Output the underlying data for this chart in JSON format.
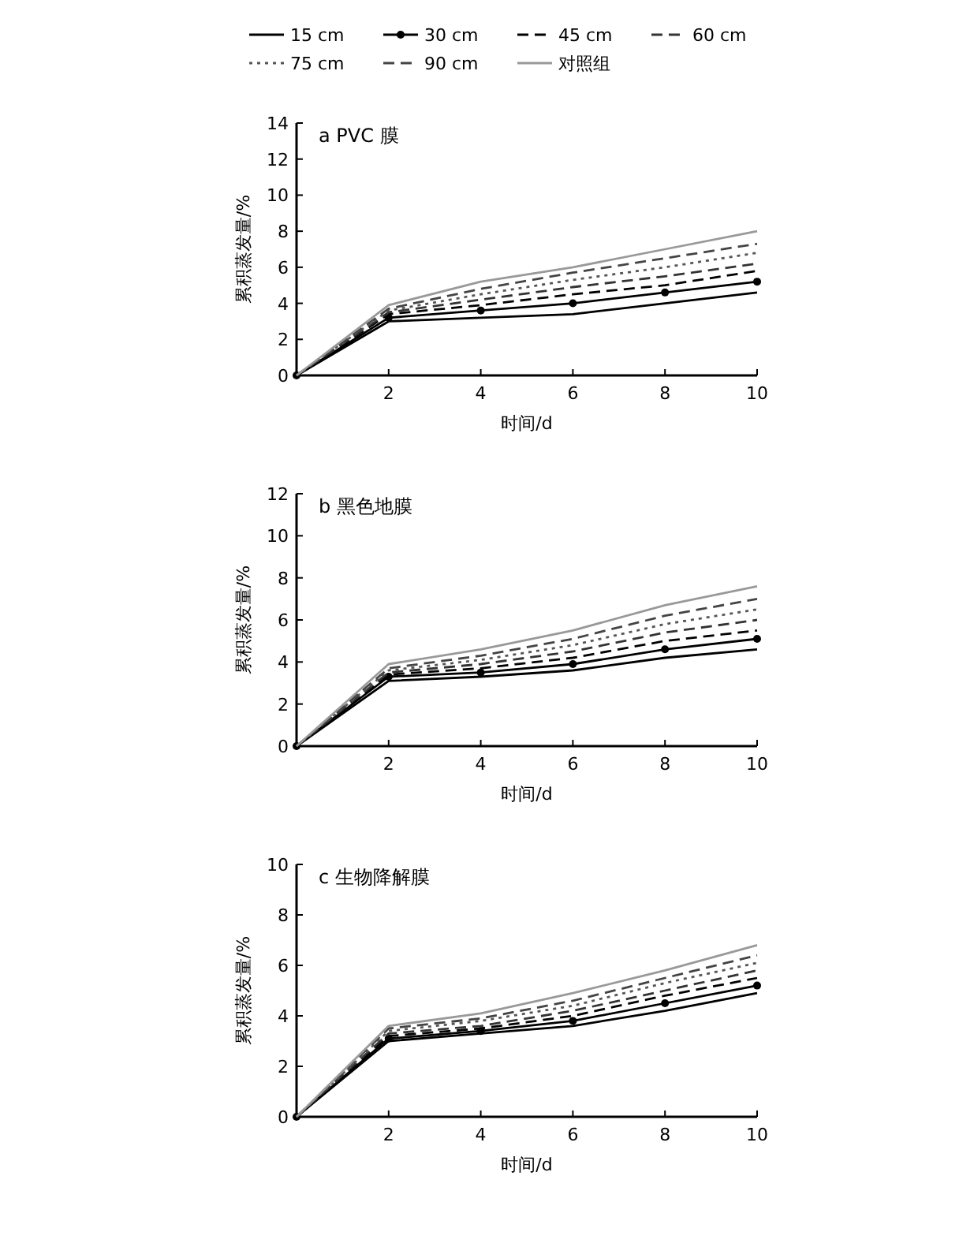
{
  "chart_data": [
    {
      "type": "line",
      "title": "a PVC 膜",
      "xlabel": "时间/d",
      "ylabel": "累积蒸发量/%",
      "x": [
        0,
        2,
        4,
        6,
        8,
        10
      ],
      "xlim": [
        0,
        10
      ],
      "xticks": [
        2,
        4,
        6,
        8,
        10
      ],
      "ylim": [
        0,
        14
      ],
      "yticks": [
        0,
        2,
        4,
        6,
        8,
        10,
        12,
        14
      ],
      "legend": "top",
      "grid": false,
      "series": [
        {
          "name": "15 cm",
          "color": "#000000",
          "line_style": "solid",
          "marker": "none",
          "values": [
            0,
            3.0,
            3.2,
            3.4,
            4.0,
            4.6
          ]
        },
        {
          "name": "30 cm",
          "color": "#000000",
          "line_style": "solid",
          "marker": "circle",
          "values": [
            0,
            3.2,
            3.6,
            4.0,
            4.6,
            5.2
          ]
        },
        {
          "name": "45 cm",
          "color": "#000000",
          "line_style": "dashed",
          "marker": "none",
          "values": [
            0,
            3.4,
            3.9,
            4.5,
            5.0,
            5.8
          ]
        },
        {
          "name": "60 cm",
          "color": "#333333",
          "line_style": "dashed",
          "marker": "none",
          "values": [
            0,
            3.5,
            4.2,
            4.9,
            5.5,
            6.2
          ]
        },
        {
          "name": "75 cm",
          "color": "#555555",
          "line_style": "dotted",
          "marker": "none",
          "values": [
            0,
            3.6,
            4.5,
            5.3,
            6.0,
            6.8
          ]
        },
        {
          "name": "90 cm",
          "color": "#444444",
          "line_style": "dashed",
          "marker": "none",
          "values": [
            0,
            3.7,
            4.8,
            5.7,
            6.5,
            7.3
          ]
        },
        {
          "name": "对照组",
          "color": "#999999",
          "line_style": "solid",
          "marker": "none",
          "values": [
            0,
            3.9,
            5.2,
            6.0,
            7.0,
            8.0
          ]
        }
      ]
    },
    {
      "type": "line",
      "title": "b 黑色地膜",
      "xlabel": "时间/d",
      "ylabel": "累积蒸发量/%",
      "x": [
        0,
        2,
        4,
        6,
        8,
        10
      ],
      "xlim": [
        0,
        10
      ],
      "xticks": [
        2,
        4,
        6,
        8,
        10
      ],
      "ylim": [
        0,
        12
      ],
      "yticks": [
        0,
        2,
        4,
        6,
        8,
        10,
        12
      ],
      "grid": false,
      "series": [
        {
          "color": "#000000",
          "line_style": "solid",
          "marker": "none",
          "values": [
            0,
            3.1,
            3.3,
            3.6,
            4.2,
            4.6
          ]
        },
        {
          "color": "#000000",
          "line_style": "solid",
          "marker": "circle",
          "values": [
            0,
            3.3,
            3.5,
            3.9,
            4.6,
            5.1
          ]
        },
        {
          "color": "#000000",
          "line_style": "dashed",
          "marker": "none",
          "values": [
            0,
            3.4,
            3.7,
            4.2,
            5.0,
            5.5
          ]
        },
        {
          "color": "#333333",
          "line_style": "dashed",
          "marker": "none",
          "values": [
            0,
            3.5,
            3.9,
            4.5,
            5.4,
            6.0
          ]
        },
        {
          "color": "#555555",
          "line_style": "dotted",
          "marker": "none",
          "values": [
            0,
            3.6,
            4.1,
            4.8,
            5.8,
            6.5
          ]
        },
        {
          "color": "#444444",
          "line_style": "dashed",
          "marker": "none",
          "values": [
            0,
            3.7,
            4.3,
            5.1,
            6.2,
            7.0
          ]
        },
        {
          "color": "#999999",
          "line_style": "solid",
          "marker": "none",
          "values": [
            0,
            3.9,
            4.6,
            5.5,
            6.7,
            7.6
          ]
        }
      ]
    },
    {
      "type": "line",
      "title": "c 生物降解膜",
      "xlabel": "时间/d",
      "ylabel": "累积蒸发量/%",
      "x": [
        0,
        2,
        4,
        6,
        8,
        10
      ],
      "xlim": [
        0,
        10
      ],
      "xticks": [
        2,
        4,
        6,
        8,
        10
      ],
      "ylim": [
        0,
        10
      ],
      "yticks": [
        0,
        2,
        4,
        6,
        8,
        10
      ],
      "grid": false,
      "series": [
        {
          "color": "#000000",
          "line_style": "solid",
          "marker": "none",
          "values": [
            0,
            3.0,
            3.3,
            3.6,
            4.2,
            4.9
          ]
        },
        {
          "color": "#000000",
          "line_style": "solid",
          "marker": "circle",
          "values": [
            0,
            3.1,
            3.4,
            3.8,
            4.5,
            5.2
          ]
        },
        {
          "color": "#000000",
          "line_style": "dashed",
          "marker": "none",
          "values": [
            0,
            3.2,
            3.5,
            4.0,
            4.8,
            5.5
          ]
        },
        {
          "color": "#333333",
          "line_style": "dashed",
          "marker": "none",
          "values": [
            0,
            3.3,
            3.6,
            4.2,
            5.0,
            5.8
          ]
        },
        {
          "color": "#555555",
          "line_style": "dotted",
          "marker": "none",
          "values": [
            0,
            3.4,
            3.8,
            4.4,
            5.3,
            6.1
          ]
        },
        {
          "color": "#444444",
          "line_style": "dashed",
          "marker": "none",
          "values": [
            0,
            3.5,
            3.9,
            4.6,
            5.5,
            6.4
          ]
        },
        {
          "color": "#999999",
          "line_style": "solid",
          "marker": "none",
          "values": [
            0,
            3.6,
            4.1,
            4.9,
            5.8,
            6.8
          ]
        }
      ]
    }
  ]
}
